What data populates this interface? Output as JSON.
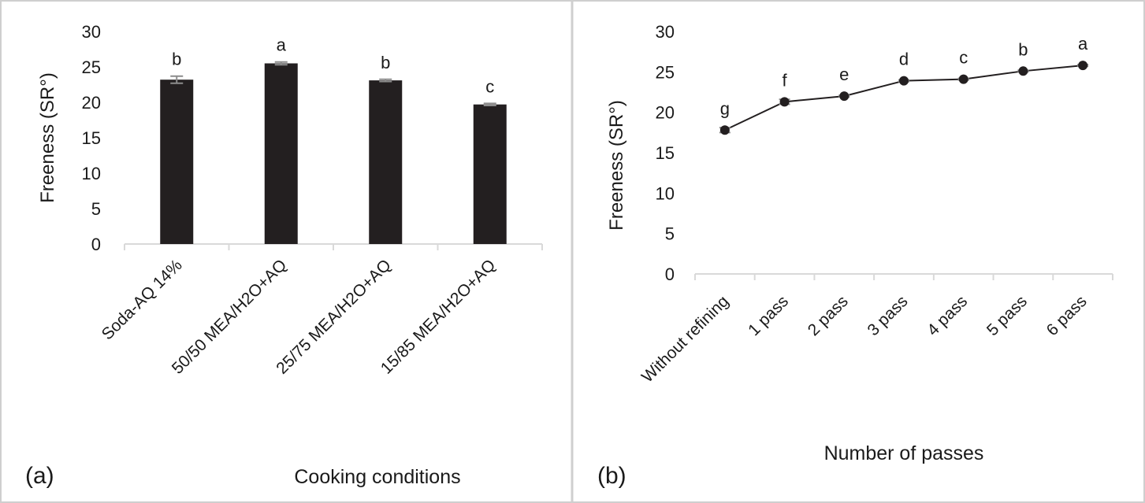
{
  "chart_data": [
    {
      "id": "a",
      "panel_label": "(a)",
      "type": "bar",
      "categories": [
        "Soda-AQ 14%",
        "50/50 MEA/H2O+AQ",
        "25/75 MEA/H2O+AQ",
        "15/85 MEA/H2O+AQ"
      ],
      "values": [
        23.2,
        25.5,
        23.1,
        19.7
      ],
      "errors": [
        0.5,
        0.2,
        0.15,
        0.15
      ],
      "significance": [
        "b",
        "a",
        "b",
        "c"
      ],
      "xlabel": "Cooking conditions",
      "ylabel": "Freeness (SR°)",
      "ylim": [
        0,
        30
      ],
      "yticks": [
        "0",
        "5",
        "10",
        "15",
        "20",
        "25",
        "30"
      ],
      "bar_color": "#231f20"
    },
    {
      "id": "b",
      "panel_label": "(b)",
      "type": "line",
      "categories": [
        "Without refining",
        "1 pass",
        "2 pass",
        "3 pass",
        "4 pass",
        "5 pass",
        "6 pass"
      ],
      "values": [
        17.8,
        21.3,
        22.0,
        23.9,
        24.1,
        25.1,
        25.8
      ],
      "errors": [
        0.3,
        0.3,
        0.1,
        0.1,
        0.1,
        0.1,
        0.1
      ],
      "significance": [
        "g",
        "f",
        "e",
        "d",
        "c",
        "b",
        "a"
      ],
      "xlabel": "Number of passes",
      "ylabel": "Freeness (SR°)",
      "ylim": [
        0,
        30
      ],
      "yticks": [
        "0",
        "5",
        "10",
        "15",
        "20",
        "25",
        "30"
      ],
      "line_color": "#231f20"
    }
  ]
}
